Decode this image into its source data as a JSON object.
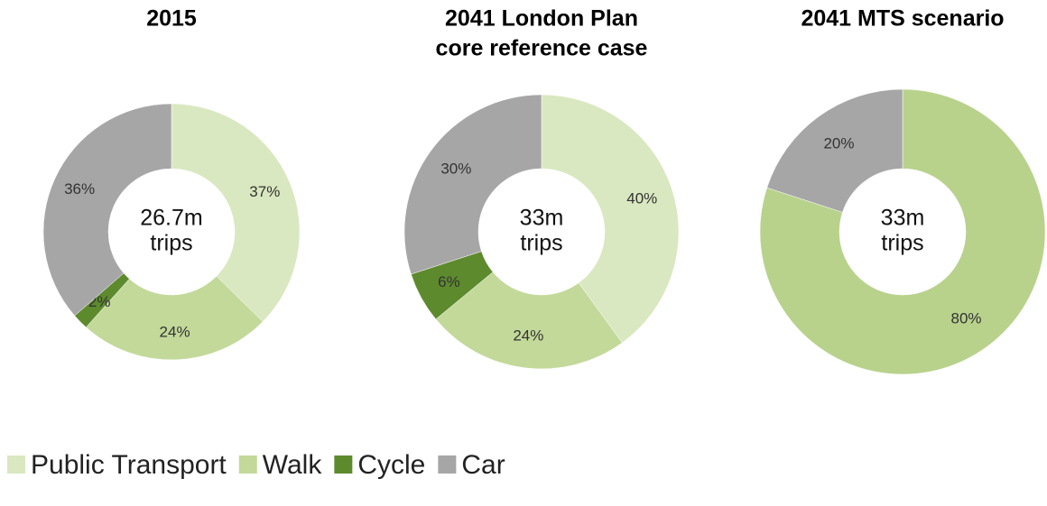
{
  "chart_data": [
    {
      "type": "pie",
      "title": [
        "2015"
      ],
      "center_label": [
        "26.7m",
        "trips"
      ],
      "values": [
        37,
        24,
        2,
        36
      ],
      "value_labels": [
        "37%",
        "24%",
        "2%",
        "36%"
      ],
      "colors": [
        "#d9e8c0",
        "#c3d99a",
        "#5e8a2e",
        "#a6a6a6"
      ]
    },
    {
      "type": "pie",
      "title": [
        "2041 London Plan",
        "core reference case"
      ],
      "center_label": [
        "33m",
        "trips"
      ],
      "values": [
        40,
        24,
        6,
        30
      ],
      "value_labels": [
        "40%",
        "24%",
        "6%",
        "30%"
      ],
      "colors": [
        "#d9e8c0",
        "#c3d99a",
        "#5e8a2e",
        "#a6a6a6"
      ]
    },
    {
      "type": "pie",
      "title": [
        "2041 MTS scenario"
      ],
      "center_label": [
        "33m",
        "trips"
      ],
      "values": [
        80,
        20
      ],
      "value_labels": [
        "80%",
        "20%"
      ],
      "colors": [
        "#b8d28c",
        "#a6a6a6"
      ]
    }
  ],
  "legend": [
    {
      "name": "Public Transport",
      "color": "#d9e8c0"
    },
    {
      "name": "Walk",
      "color": "#c3d99a"
    },
    {
      "name": "Cycle",
      "color": "#5e8a2e"
    },
    {
      "name": "Car",
      "color": "#a6a6a6"
    }
  ]
}
